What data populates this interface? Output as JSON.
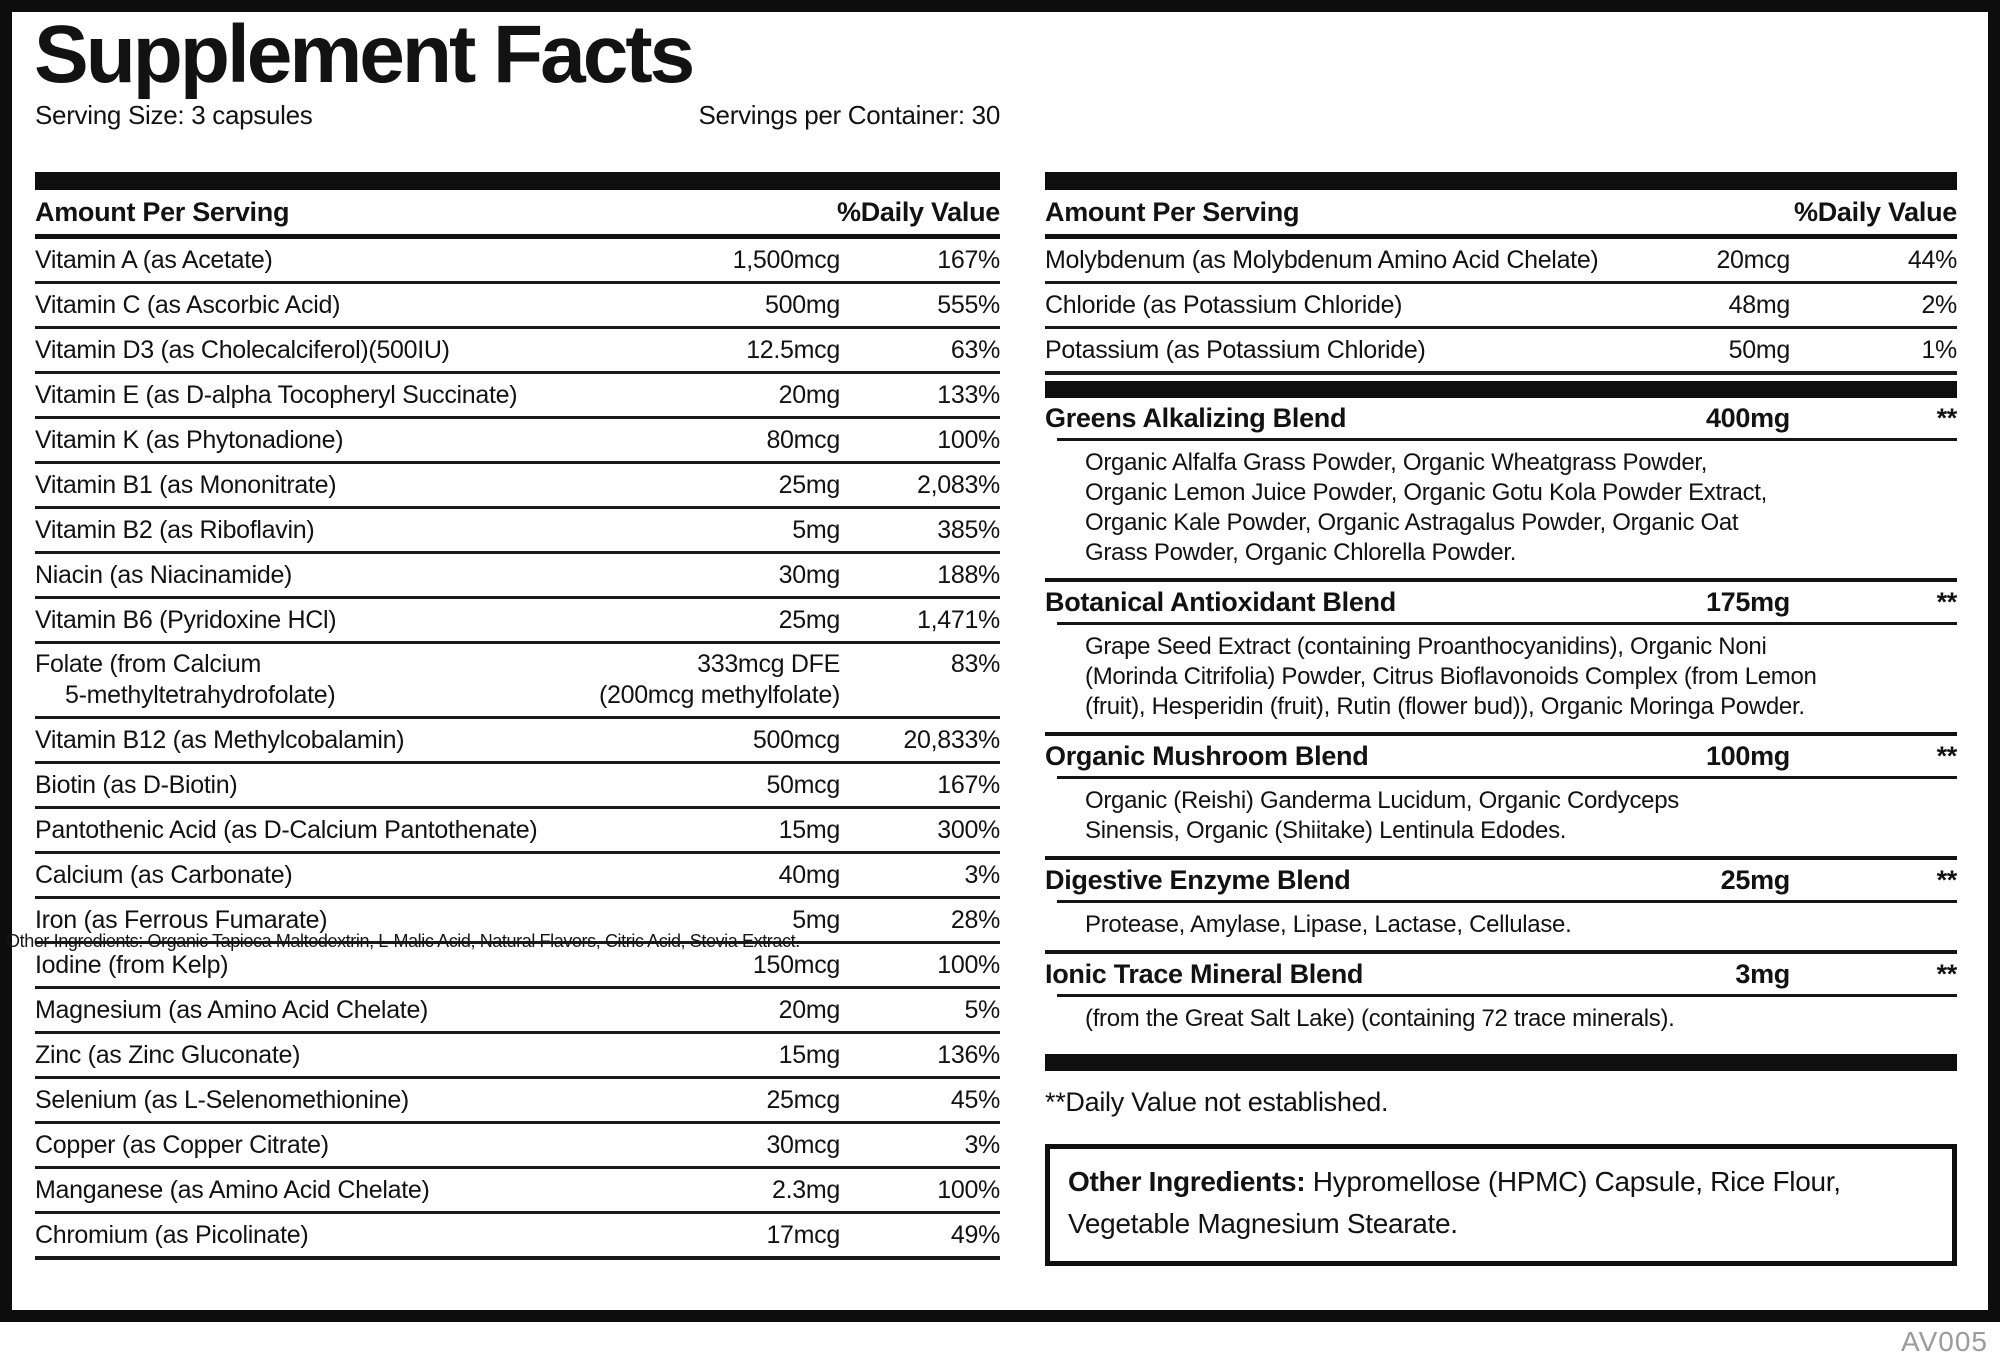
{
  "header": {
    "title": "Supplement Facts",
    "serving_size": "Serving Size: 3 capsules",
    "servings_per_container": "Servings per Container: 30"
  },
  "column_headers": {
    "amount": "Amount Per Serving",
    "daily_value": "%Daily Value"
  },
  "left_table": {
    "rows": [
      {
        "name_lines": [
          "Vitamin A (as Acetate)"
        ],
        "amount_lines": [
          "1,500mcg"
        ],
        "dv": "167%"
      },
      {
        "name_lines": [
          "Vitamin C (as Ascorbic Acid)"
        ],
        "amount_lines": [
          "500mg"
        ],
        "dv": "555%"
      },
      {
        "name_lines": [
          "Vitamin D3 (as Cholecalciferol)(500IU)"
        ],
        "amount_lines": [
          "12.5mcg"
        ],
        "dv": "63%"
      },
      {
        "name_lines": [
          "Vitamin E (as D-alpha Tocopheryl Succinate)"
        ],
        "amount_lines": [
          "20mg"
        ],
        "dv": "133%"
      },
      {
        "name_lines": [
          "Vitamin K (as Phytonadione)"
        ],
        "amount_lines": [
          "80mcg"
        ],
        "dv": "100%"
      },
      {
        "name_lines": [
          "Vitamin B1 (as Mononitrate)"
        ],
        "amount_lines": [
          "25mg"
        ],
        "dv": "2,083%"
      },
      {
        "name_lines": [
          "Vitamin B2 (as Riboflavin)"
        ],
        "amount_lines": [
          "5mg"
        ],
        "dv": "385%"
      },
      {
        "name_lines": [
          "Niacin (as Niacinamide)"
        ],
        "amount_lines": [
          "30mg"
        ],
        "dv": "188%"
      },
      {
        "name_lines": [
          "Vitamin B6 (Pyridoxine HCl)"
        ],
        "amount_lines": [
          "25mg"
        ],
        "dv": "1,471%"
      },
      {
        "name_lines": [
          "Folate (from Calcium",
          "5-methyltetrahydrofolate)"
        ],
        "amount_lines": [
          "333mcg DFE",
          "(200mcg methylfolate)"
        ],
        "dv": "83%"
      },
      {
        "name_lines": [
          "Vitamin B12 (as Methylcobalamin)"
        ],
        "amount_lines": [
          "500mcg"
        ],
        "dv": "20,833%"
      },
      {
        "name_lines": [
          "Biotin (as D-Biotin)"
        ],
        "amount_lines": [
          "50mcg"
        ],
        "dv": "167%"
      },
      {
        "name_lines": [
          "Pantothenic Acid (as D-Calcium Pantothenate)"
        ],
        "amount_lines": [
          "15mg"
        ],
        "dv": "300%"
      },
      {
        "name_lines": [
          "Calcium (as Carbonate)"
        ],
        "amount_lines": [
          "40mg"
        ],
        "dv": "3%"
      },
      {
        "name_lines": [
          "Iron (as Ferrous Fumarate)"
        ],
        "amount_lines": [
          "5mg"
        ],
        "dv": "28%"
      },
      {
        "name_lines": [
          "Iodine (from Kelp)"
        ],
        "amount_lines": [
          "150mcg"
        ],
        "dv": "100%"
      },
      {
        "name_lines": [
          "Magnesium (as Amino Acid Chelate)"
        ],
        "amount_lines": [
          "20mg"
        ],
        "dv": "5%"
      },
      {
        "name_lines": [
          "Zinc (as Zinc Gluconate)"
        ],
        "amount_lines": [
          "15mg"
        ],
        "dv": "136%"
      },
      {
        "name_lines": [
          "Selenium (as L-Selenomethionine)"
        ],
        "amount_lines": [
          "25mcg"
        ],
        "dv": "45%"
      },
      {
        "name_lines": [
          "Copper (as Copper Citrate)"
        ],
        "amount_lines": [
          "30mcg"
        ],
        "dv": "3%"
      },
      {
        "name_lines": [
          "Manganese (as Amino Acid Chelate)"
        ],
        "amount_lines": [
          "2.3mg"
        ],
        "dv": "100%"
      },
      {
        "name_lines": [
          "Chromium (as Picolinate)"
        ],
        "amount_lines": [
          "17mcg"
        ],
        "dv": "49%"
      }
    ]
  },
  "right_table": {
    "rows": [
      {
        "name_lines": [
          "Molybdenum (as Molybdenum Amino Acid Chelate)"
        ],
        "amount_lines": [
          "20mcg"
        ],
        "dv": "44%"
      },
      {
        "name_lines": [
          "Chloride (as Potassium Chloride)"
        ],
        "amount_lines": [
          "48mg"
        ],
        "dv": "2%"
      },
      {
        "name_lines": [
          "Potassium (as Potassium Chloride)"
        ],
        "amount_lines": [
          "50mg"
        ],
        "dv": "1%"
      }
    ]
  },
  "blends": [
    {
      "name": "Greens Alkalizing Blend",
      "amount": "400mg",
      "dv": "**",
      "description_lines": [
        "Organic Alfalfa Grass Powder, Organic Wheatgrass Powder,",
        "Organic Lemon Juice Powder, Organic Gotu Kola Powder Extract,",
        "Organic Kale Powder, Organic Astragalus Powder, Organic Oat",
        "Grass Powder, Organic Chlorella Powder."
      ]
    },
    {
      "name": "Botanical Antioxidant Blend",
      "amount": "175mg",
      "dv": "**",
      "description_lines": [
        "Grape Seed Extract (containing Proanthocyanidins), Organic Noni",
        "(Morinda Citrifolia) Powder, Citrus Bioflavonoids Complex (from Lemon",
        "(fruit), Hesperidin (fruit), Rutin (flower bud)), Organic Moringa Powder."
      ]
    },
    {
      "name": "Organic Mushroom Blend",
      "amount": "100mg",
      "dv": "**",
      "description_lines": [
        "Organic (Reishi) Ganderma Lucidum, Organic Cordyceps",
        "Sinensis, Organic (Shiitake) Lentinula Edodes."
      ]
    },
    {
      "name": "Digestive Enzyme Blend",
      "amount": "25mg",
      "dv": "**",
      "description_lines": [
        "Protease, Amylase, Lipase, Lactase, Cellulase."
      ]
    },
    {
      "name": "Ionic Trace Mineral Blend",
      "amount": "3mg",
      "dv": "**",
      "description_lines": [
        "(from the Great Salt Lake) (containing 72 trace minerals)."
      ]
    }
  ],
  "footnotes": {
    "daily_value_note": "**Daily Value not established."
  },
  "other_ingredients": {
    "label": "Other Ingredients:",
    "text": " Hypromellose (HPMC) Capsule, Rice Flour,\nVegetable Magnesium Stearate."
  },
  "overlay_artifact": "Other Ingredients: Organic Tapioca Maltodextrin, L-Malic Acid, Natural Flavors, Citric Acid, Stevia Extract.",
  "product_code": "AV005",
  "colors": {
    "ink": "#0f0f0f",
    "muted": "#9b9b9b"
  }
}
